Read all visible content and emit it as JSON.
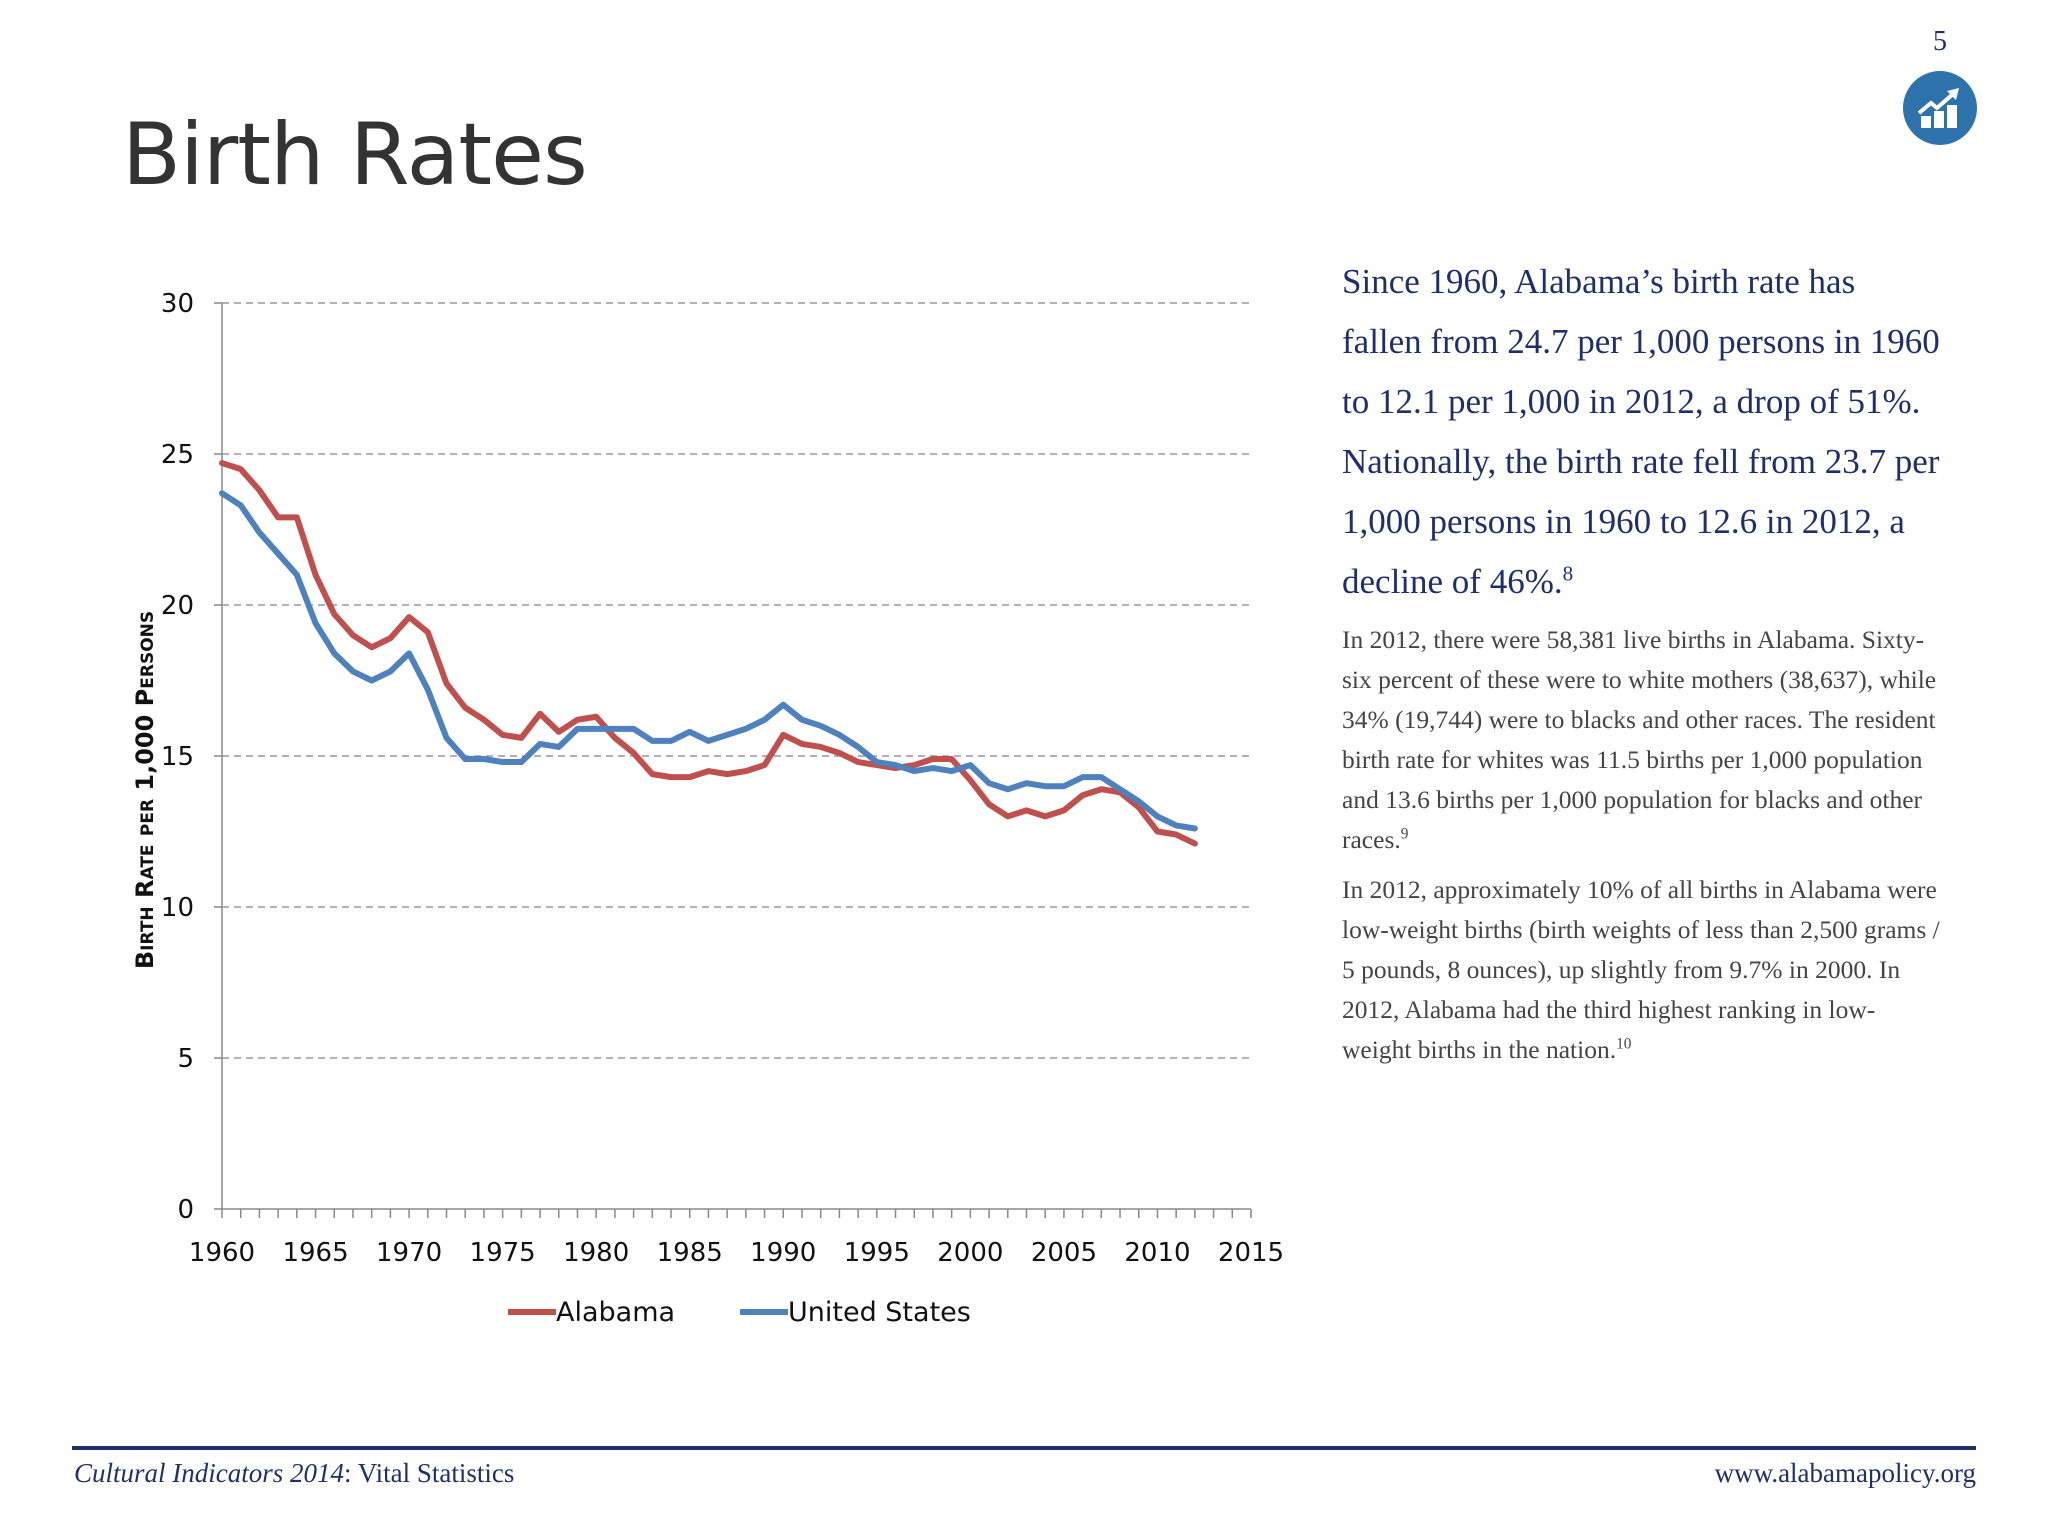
{
  "page": {
    "title": "Birth Rates",
    "page_number": "5",
    "icon": "chart-growth-icon",
    "accent_color": "#2e72ac"
  },
  "text": {
    "lead": "Since 1960, Alabama’s birth rate has fallen from 24.7 per 1,000 persons in 1960 to 12.1 per 1,000 in 2012, a drop of 51%. Nationally, the birth rate fell from 23.7 per 1,000 persons in 1960 to 12.6 in 2012, a decline of 46%.",
    "lead_note": "8",
    "p1": "In 2012, there were 58,381 live births in Alabama. Sixty-six percent of these were to white mothers (38,637), while 34% (19,744) were to blacks and other races.  The resident birth rate for whites was 11.5 births per 1,000 population and 13.6 births per 1,000 population for blacks and other races.",
    "p1_note": "9",
    "p2": "In 2012, approximately 10% of all births in Alabama were low-weight births (birth weights of less than 2,500 grams / 5 pounds, 8 ounces), up slightly from 9.7% in 2000.  In 2012, Alabama had the third highest ranking in low-weight births in the nation.",
    "p2_note": "10"
  },
  "footer": {
    "left_italic": "Cultural Indicators 2014",
    "left_rest": ": Vital Statistics",
    "right": "www.alabamapolicy.org",
    "rule_color": "#1f2f6b"
  },
  "chart_data": {
    "type": "line",
    "title": "",
    "xlabel": "",
    "ylabel": "Birth Rate per 1,000 Persons",
    "xlim": [
      1960,
      2015
    ],
    "ylim": [
      0,
      30
    ],
    "x_ticks": [
      "1960",
      "1965",
      "1970",
      "1975",
      "1980",
      "1985",
      "1990",
      "1995",
      "2000",
      "2005",
      "2010",
      "2015"
    ],
    "y_ticks": [
      "0",
      "5",
      "10",
      "15",
      "20",
      "25",
      "30"
    ],
    "grid": "horizontal dashed",
    "legend_position": "bottom",
    "x": [
      1960,
      1961,
      1962,
      1963,
      1964,
      1965,
      1966,
      1967,
      1968,
      1969,
      1970,
      1971,
      1972,
      1973,
      1974,
      1975,
      1976,
      1977,
      1978,
      1979,
      1980,
      1981,
      1982,
      1983,
      1984,
      1985,
      1986,
      1987,
      1988,
      1989,
      1990,
      1991,
      1992,
      1993,
      1994,
      1995,
      1996,
      1997,
      1998,
      1999,
      2000,
      2001,
      2002,
      2003,
      2004,
      2005,
      2006,
      2007,
      2008,
      2009,
      2010,
      2011,
      2012
    ],
    "series": [
      {
        "name": "Alabama",
        "color": "#c0504d",
        "values": [
          24.7,
          24.5,
          23.8,
          22.9,
          22.9,
          21.0,
          19.7,
          19.0,
          18.6,
          18.9,
          19.6,
          19.1,
          17.4,
          16.6,
          16.2,
          15.7,
          15.6,
          16.4,
          15.8,
          16.2,
          16.3,
          15.6,
          15.1,
          14.4,
          14.3,
          14.3,
          14.5,
          14.4,
          14.5,
          14.7,
          15.7,
          15.4,
          15.3,
          15.1,
          14.8,
          14.7,
          14.6,
          14.7,
          14.9,
          14.9,
          14.2,
          13.4,
          13.0,
          13.2,
          13.0,
          13.2,
          13.7,
          13.9,
          13.8,
          13.3,
          12.5,
          12.4,
          12.1
        ]
      },
      {
        "name": "United States",
        "color": "#4f81bd",
        "values": [
          23.7,
          23.3,
          22.4,
          21.7,
          21.0,
          19.4,
          18.4,
          17.8,
          17.5,
          17.8,
          18.4,
          17.2,
          15.6,
          14.9,
          14.9,
          14.8,
          14.8,
          15.4,
          15.3,
          15.9,
          15.9,
          15.9,
          15.9,
          15.5,
          15.5,
          15.8,
          15.5,
          15.7,
          15.9,
          16.2,
          16.7,
          16.2,
          16.0,
          15.7,
          15.3,
          14.8,
          14.7,
          14.5,
          14.6,
          14.5,
          14.7,
          14.1,
          13.9,
          14.1,
          14.0,
          14.0,
          14.3,
          14.3,
          13.9,
          13.5,
          13.0,
          12.7,
          12.6
        ]
      }
    ]
  }
}
